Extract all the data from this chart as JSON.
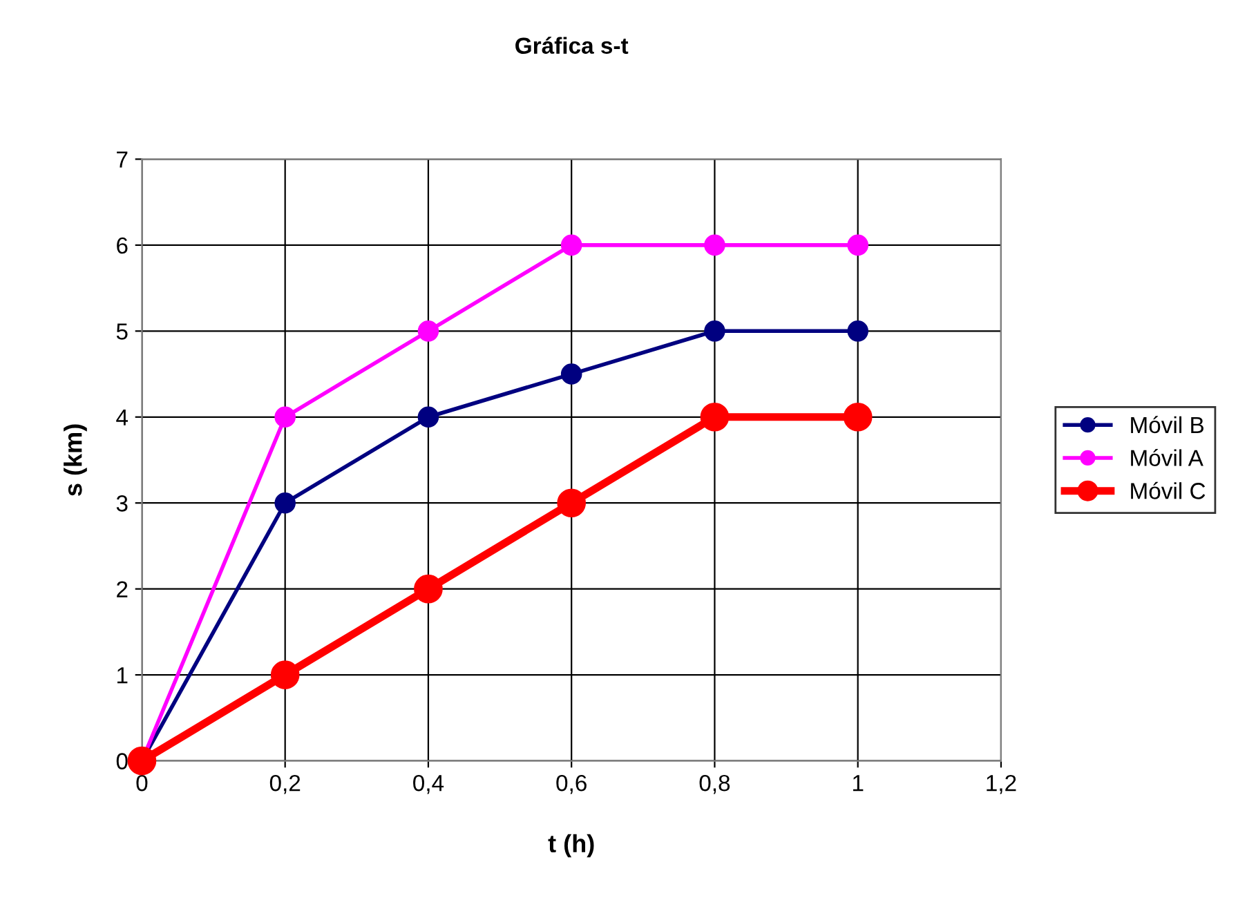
{
  "chart_data": {
    "type": "line",
    "title": "Gráfica s-t",
    "xlabel": "t (h)",
    "ylabel": "s (km)",
    "x": [
      0,
      0.2,
      0.4,
      0.6,
      0.8,
      1
    ],
    "series": [
      {
        "name": "Móvil B",
        "color": "#000080",
        "values": [
          0,
          3,
          4,
          4.5,
          5,
          5
        ]
      },
      {
        "name": "Móvil A",
        "color": "#ff00ff",
        "values": [
          0,
          4,
          5,
          6,
          6,
          6
        ]
      },
      {
        "name": "Móvil C",
        "color": "#ff0000",
        "values": [
          0,
          1,
          2,
          3,
          4,
          4
        ]
      }
    ],
    "xlim": [
      0,
      1.2
    ],
    "xticks": [
      0,
      {
        "value": 0.2,
        "label": "0,2"
      },
      {
        "value": 0.4,
        "label": "0,4"
      },
      {
        "value": 0.6,
        "label": "0,6"
      },
      {
        "value": 0.8,
        "label": "0,8"
      },
      1,
      {
        "value": 1.2,
        "label": "1,2"
      }
    ],
    "ylim": [
      0,
      7
    ],
    "yticks": [
      0,
      1,
      2,
      3,
      4,
      5,
      6,
      7
    ],
    "grid": true,
    "legend": "right",
    "marker": "circle",
    "line_style": "solid"
  }
}
